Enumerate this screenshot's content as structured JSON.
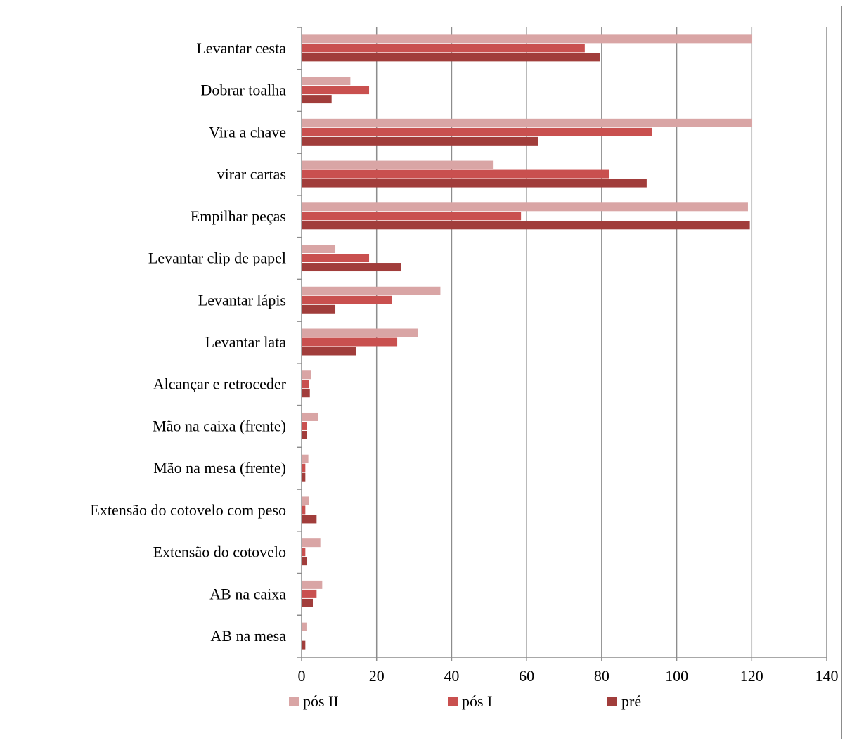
{
  "chart_data": {
    "type": "bar",
    "orientation": "horizontal",
    "categories": [
      "Levantar cesta",
      "Dobrar toalha",
      "Vira a chave",
      "virar cartas",
      "Empilhar peças",
      "Levantar clip de papel",
      "Levantar lápis",
      "Levantar lata",
      "Alcançar e retroceder",
      "Mão na caixa (frente)",
      "Mão na mesa (frente)",
      "Extensão do cotovelo com peso",
      "Extensão do cotovelo",
      "AB na caixa",
      "AB na mesa"
    ],
    "series": [
      {
        "name": "pós II",
        "color": "#d9a5a5",
        "values": [
          120,
          13,
          120,
          51,
          119,
          9,
          37,
          31,
          2.5,
          4.5,
          1.8,
          2,
          5,
          5.5,
          1.3
        ]
      },
      {
        "name": "pós I",
        "color": "#c9504f",
        "values": [
          75.5,
          18,
          93.5,
          82,
          58.5,
          18,
          24,
          25.5,
          2,
          1.5,
          1,
          1,
          1,
          4,
          0
        ]
      },
      {
        "name": "pré",
        "color": "#a13d3b",
        "values": [
          79.5,
          8,
          63,
          92,
          119.5,
          26.5,
          9,
          14.5,
          2.2,
          1.5,
          1,
          4,
          1.5,
          3,
          1
        ]
      }
    ],
    "xlim": [
      0,
      140
    ],
    "x_ticks": [
      "0",
      "20",
      "40",
      "60",
      "80",
      "100",
      "120",
      "140"
    ],
    "grid": true,
    "legend": {
      "position": "bottom",
      "entries": [
        "pós II",
        "pós I",
        "pré"
      ]
    },
    "title": "",
    "xlabel": "",
    "ylabel": ""
  }
}
